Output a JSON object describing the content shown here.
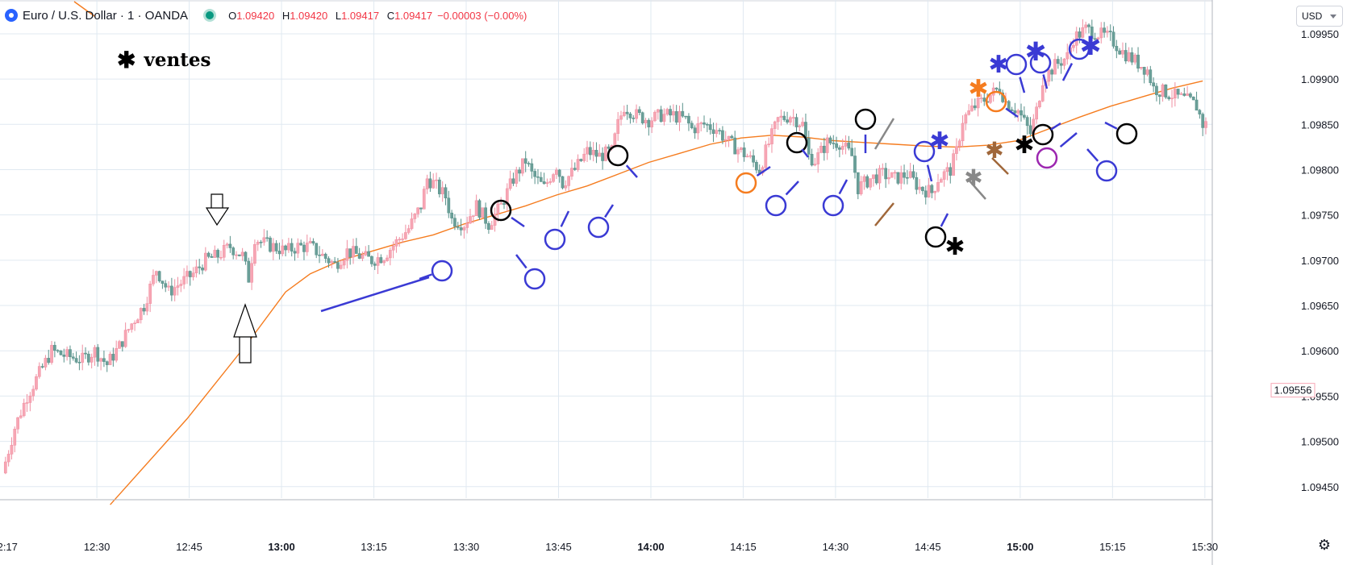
{
  "header": {
    "symbol_title": "Euro / U.S. Dollar · 1 · OANDA",
    "open_label": "O",
    "open": "1.09420",
    "high_label": "H",
    "high": "1.09420",
    "low_label": "L",
    "low": "1.09417",
    "close_label": "C",
    "close": "1.09417",
    "change": "−0.00003 (−0.00%)"
  },
  "legend_note": {
    "symbol": "✱",
    "text": "ventes"
  },
  "currency": "USD",
  "last_price_label": "1.09556",
  "colors": {
    "up": "#f7a6b4",
    "up_stroke": "#ef8fa1",
    "down": "#6a9f98",
    "down_stroke": "#58918a",
    "ma": "#f57c1f",
    "blue_mark": "#3a3ad4",
    "black_mark": "#000000",
    "orange_mark": "#f57c1f",
    "purple_mark": "#9c27b0",
    "brown_mark": "#a0673a",
    "grey_mark": "#888888"
  },
  "chart_data": {
    "type": "candlestick",
    "title": "Euro / U.S. Dollar · 1 · OANDA",
    "y_range": [
      1.0944,
      1.0999
    ],
    "y_ticks": [
      "1.09950",
      "1.09900",
      "1.09850",
      "1.09800",
      "1.09750",
      "1.09700",
      "1.09650",
      "1.09600",
      "1.09550",
      "1.09500",
      "1.09450"
    ],
    "x_ticks": [
      {
        "label": "12:17",
        "bold": false
      },
      {
        "label": "12:30",
        "bold": false
      },
      {
        "label": "12:45",
        "bold": false
      },
      {
        "label": "13:00",
        "bold": true
      },
      {
        "label": "13:15",
        "bold": false
      },
      {
        "label": "13:30",
        "bold": false
      },
      {
        "label": "13:45",
        "bold": false
      },
      {
        "label": "14:00",
        "bold": true
      },
      {
        "label": "14:15",
        "bold": false
      },
      {
        "label": "14:30",
        "bold": false
      },
      {
        "label": "14:45",
        "bold": false
      },
      {
        "label": "15:00",
        "bold": true
      },
      {
        "label": "15:15",
        "bold": false
      },
      {
        "label": "15:30",
        "bold": false
      }
    ],
    "grid": true,
    "close_path": [
      [
        0,
        1.09465
      ],
      [
        4,
        1.09515
      ],
      [
        8,
        1.0955
      ],
      [
        12,
        1.09575
      ],
      [
        16,
        1.096
      ],
      [
        20,
        1.09595
      ],
      [
        26,
        1.0959
      ],
      [
        30,
        1.096
      ],
      [
        34,
        1.09585
      ],
      [
        38,
        1.09605
      ],
      [
        42,
        1.0963
      ],
      [
        46,
        1.0965
      ],
      [
        50,
        1.0969
      ],
      [
        54,
        1.09665
      ],
      [
        58,
        1.09675
      ],
      [
        62,
        1.09685
      ],
      [
        66,
        1.097
      ],
      [
        70,
        1.09705
      ],
      [
        74,
        1.09715
      ],
      [
        76,
        1.0971
      ],
      [
        78,
        1.09705
      ],
      [
        80,
        1.0968
      ],
      [
        82,
        1.09725
      ],
      [
        84,
        1.0972
      ],
      [
        88,
        1.09715
      ],
      [
        92,
        1.0971
      ],
      [
        96,
        1.09715
      ],
      [
        100,
        1.09715
      ],
      [
        104,
        1.09705
      ],
      [
        108,
        1.09695
      ],
      [
        112,
        1.0971
      ],
      [
        116,
        1.09705
      ],
      [
        120,
        1.097
      ],
      [
        124,
        1.09705
      ],
      [
        128,
        1.0972
      ],
      [
        132,
        1.09735
      ],
      [
        136,
        1.0976
      ],
      [
        138,
        1.0979
      ],
      [
        140,
        1.09785
      ],
      [
        144,
        1.0977
      ],
      [
        146,
        1.09745
      ],
      [
        150,
        1.0974
      ],
      [
        154,
        1.0976
      ],
      [
        158,
        1.0974
      ],
      [
        162,
        1.0976
      ],
      [
        166,
        1.0979
      ],
      [
        170,
        1.0981
      ],
      [
        172,
        1.09795
      ],
      [
        176,
        1.0978
      ],
      [
        180,
        1.09805
      ],
      [
        182,
        1.09785
      ],
      [
        186,
        1.098
      ],
      [
        190,
        1.0982
      ],
      [
        194,
        1.09815
      ],
      [
        198,
        1.0982
      ],
      [
        200,
        1.0985
      ],
      [
        202,
        1.0987
      ],
      [
        206,
        1.0986
      ],
      [
        210,
        1.09855
      ],
      [
        214,
        1.0986
      ],
      [
        218,
        1.0986
      ],
      [
        222,
        1.09855
      ],
      [
        224,
        1.09845
      ],
      [
        228,
        1.0985
      ],
      [
        232,
        1.09845
      ],
      [
        236,
        1.0983
      ],
      [
        238,
        1.09825
      ],
      [
        242,
        1.09815
      ],
      [
        246,
        1.098
      ],
      [
        248,
        1.0982
      ],
      [
        252,
        1.09855
      ],
      [
        256,
        1.0986
      ],
      [
        260,
        1.0985
      ],
      [
        262,
        1.09815
      ],
      [
        264,
        1.0981
      ],
      [
        268,
        1.0983
      ],
      [
        272,
        1.0983
      ],
      [
        276,
        1.09815
      ],
      [
        278,
        1.0978
      ],
      [
        282,
        1.0979
      ],
      [
        286,
        1.09795
      ],
      [
        290,
        1.0979
      ],
      [
        294,
        1.09795
      ],
      [
        298,
        1.0978
      ],
      [
        302,
        1.09775
      ],
      [
        304,
        1.0979
      ],
      [
        308,
        1.098
      ],
      [
        310,
        1.0982
      ],
      [
        312,
        1.09855
      ],
      [
        316,
        1.0987
      ],
      [
        320,
        1.0988
      ],
      [
        324,
        1.0989
      ],
      [
        326,
        1.09875
      ],
      [
        330,
        1.09865
      ],
      [
        334,
        1.0984
      ],
      [
        336,
        1.09865
      ],
      [
        338,
        1.099
      ],
      [
        342,
        1.09915
      ],
      [
        346,
        1.09925
      ],
      [
        348,
        1.09945
      ],
      [
        352,
        1.09955
      ],
      [
        356,
        1.0995
      ],
      [
        360,
        1.09945
      ],
      [
        364,
        1.0993
      ],
      [
        368,
        1.0992
      ],
      [
        372,
        1.0991
      ],
      [
        374,
        1.0989
      ],
      [
        378,
        1.09885
      ],
      [
        382,
        1.0988
      ],
      [
        386,
        1.09875
      ],
      [
        388,
        1.0987
      ],
      [
        390,
        1.0985
      ]
    ],
    "ma_path": [
      [
        35,
        1.0943
      ],
      [
        60,
        1.09525
      ],
      [
        80,
        1.0961
      ],
      [
        92,
        1.09665
      ],
      [
        100,
        1.09685
      ],
      [
        110,
        1.097
      ],
      [
        130,
        1.0972
      ],
      [
        140,
        1.09728
      ],
      [
        150,
        1.0974
      ],
      [
        160,
        1.0975
      ],
      [
        170,
        1.0976
      ],
      [
        180,
        1.09772
      ],
      [
        190,
        1.09782
      ],
      [
        200,
        1.09795
      ],
      [
        210,
        1.09808
      ],
      [
        220,
        1.09818
      ],
      [
        230,
        1.09828
      ],
      [
        240,
        1.09835
      ],
      [
        250,
        1.09838
      ],
      [
        260,
        1.09836
      ],
      [
        270,
        1.09832
      ],
      [
        280,
        1.0983
      ],
      [
        290,
        1.09828
      ],
      [
        300,
        1.09826
      ],
      [
        310,
        1.09825
      ],
      [
        320,
        1.09827
      ],
      [
        330,
        1.09832
      ],
      [
        340,
        1.09845
      ],
      [
        350,
        1.09858
      ],
      [
        360,
        1.0987
      ],
      [
        370,
        1.0988
      ],
      [
        380,
        1.0989
      ],
      [
        390,
        1.09898
      ]
    ]
  }
}
